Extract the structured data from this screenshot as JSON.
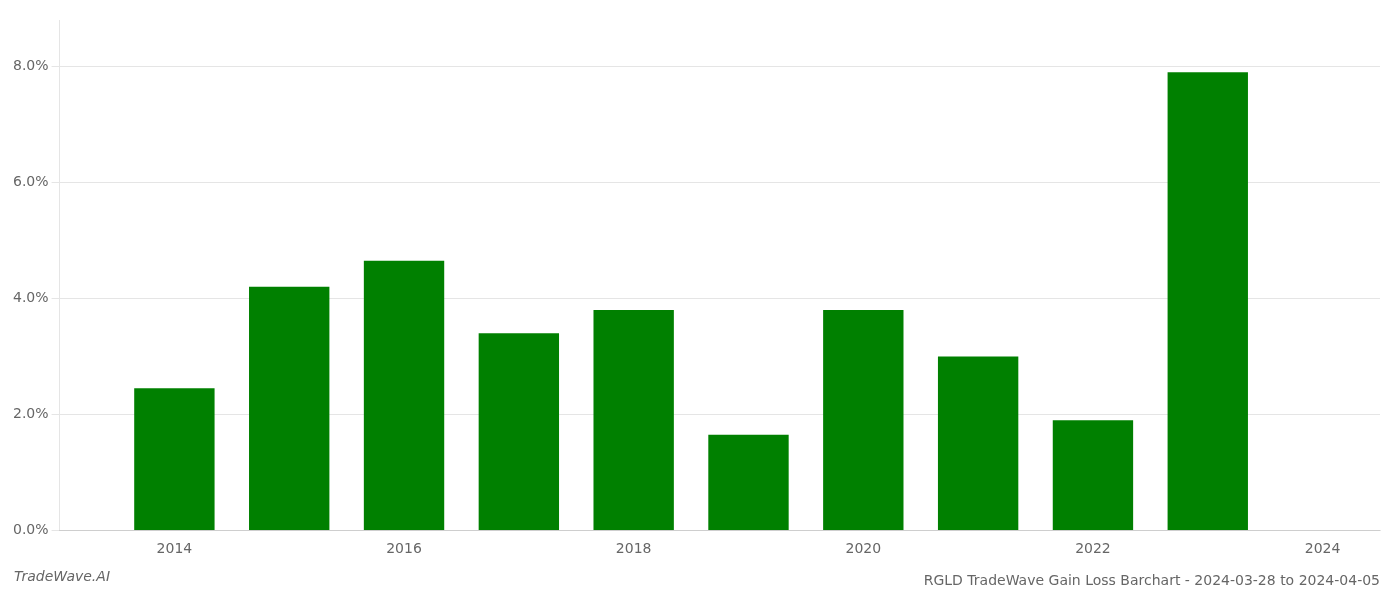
{
  "chart_data": {
    "type": "bar",
    "title": "RGLD TradeWave Gain Loss Barchart - 2024-03-28 to 2024-04-05",
    "annotations": [
      "TradeWave.AI"
    ],
    "x": [
      2014,
      2015,
      2016,
      2017,
      2018,
      2019,
      2020,
      2021,
      2022,
      2023
    ],
    "values": [
      0.0245,
      0.042,
      0.0465,
      0.034,
      0.038,
      0.0165,
      0.038,
      0.03,
      0.019,
      0.079
    ],
    "color": "#008000",
    "xlim": [
      2013.0,
      2024.5
    ],
    "xticks": [
      2014,
      2016,
      2018,
      2020,
      2022,
      2024
    ],
    "ylim": [
      0,
      0.088
    ],
    "yticks": [
      {
        "value": 0.0,
        "label": "0.0%"
      },
      {
        "value": 0.02,
        "label": "2.0%"
      },
      {
        "value": 0.04,
        "label": "4.0%"
      },
      {
        "value": 0.06,
        "label": "6.0%"
      },
      {
        "value": 0.08,
        "label": "8.0%"
      }
    ],
    "grid": true
  }
}
